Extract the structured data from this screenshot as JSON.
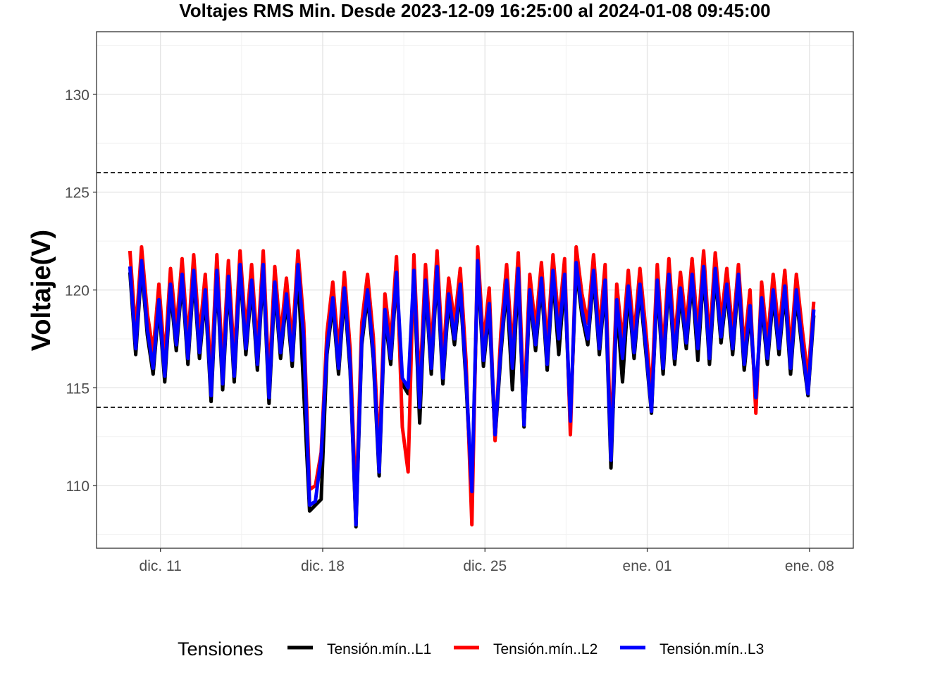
{
  "chart_data": {
    "type": "line",
    "title": "Voltajes RMS Min. Desde  2023-12-09 16:25:00  al  2024-01-08 09:45:00",
    "xlabel": "",
    "ylabel": "Voltaje(V)",
    "ylim": [
      106.8,
      133.2
    ],
    "xlim": [
      "2023-12-08T05:50:00",
      "2024-01-09T21:20:00"
    ],
    "grid": true,
    "y_ticks": [
      110,
      115,
      120,
      125,
      130
    ],
    "y_tick_labels": [
      "110",
      "115",
      "120",
      "125",
      "130"
    ],
    "x_ticks": [
      "2023-12-11",
      "2023-12-18",
      "2023-12-25",
      "2024-01-01",
      "2024-01-08"
    ],
    "x_tick_labels": [
      "dic. 11",
      "dic. 18",
      "dic. 25",
      "ene. 01",
      "ene. 08"
    ],
    "reference_lines": [
      126,
      114
    ],
    "legend": {
      "title": "Tensiones",
      "position": "bottom"
    },
    "x_start": "2023-12-09T16:25:00",
    "step_hours": 6,
    "series": [
      {
        "name": "Tensión.mín..L1",
        "color": "#000000",
        "values": [
          120.9,
          116.7,
          121.2,
          117.7,
          115.7,
          119.2,
          115.3,
          120.0,
          116.9,
          120.5,
          116.2,
          120.7,
          116.5,
          119.7,
          114.3,
          120.7,
          114.9,
          120.4,
          115.3,
          121.0,
          116.7,
          120.2,
          115.9,
          121.0,
          114.2,
          120.1,
          116.5,
          119.5,
          116.1,
          121.0,
          114.8,
          108.7,
          109.0,
          109.3,
          116.7,
          119.3,
          115.7,
          119.8,
          115.9,
          107.9,
          117.2,
          119.7,
          116.5,
          110.5,
          118.7,
          116.2,
          120.6,
          115.2,
          114.7,
          120.7,
          113.2,
          120.2,
          115.7,
          120.9,
          115.2,
          119.5,
          117.2,
          120.0,
          115.3,
          109.5,
          121.2,
          116.1,
          119.0,
          112.4,
          116.7,
          120.2,
          114.9,
          120.8,
          113.0,
          119.7,
          116.9,
          120.3,
          115.9,
          120.7,
          116.7,
          120.5,
          113.2,
          121.1,
          118.7,
          117.2,
          120.7,
          116.7,
          120.2,
          110.9,
          119.2,
          115.3,
          119.9,
          116.5,
          120.0,
          116.9,
          113.7,
          120.2,
          115.7,
          120.5,
          116.2,
          119.8,
          117.0,
          120.5,
          116.4,
          120.9,
          116.2,
          120.8,
          117.3,
          120.0,
          116.7,
          120.5,
          115.9,
          118.9,
          114.4,
          119.3,
          116.2,
          119.7,
          116.7,
          119.9,
          115.7,
          119.7,
          116.9,
          114.6,
          118.7
        ]
      },
      {
        "name": "Tensión.mín..L2",
        "color": "#ff0000",
        "values": [
          122.0,
          117.8,
          122.2,
          118.8,
          116.8,
          120.3,
          116.4,
          121.1,
          118.0,
          121.6,
          117.3,
          121.8,
          117.6,
          120.8,
          115.4,
          121.8,
          116.0,
          121.5,
          116.4,
          122.0,
          117.8,
          121.3,
          117.0,
          122.0,
          115.3,
          121.2,
          117.6,
          120.6,
          117.2,
          122.0,
          118.3,
          109.8,
          110.0,
          111.7,
          117.8,
          120.4,
          116.8,
          120.9,
          117.0,
          108.8,
          118.3,
          120.8,
          117.6,
          111.5,
          119.8,
          117.3,
          121.7,
          113.0,
          110.7,
          121.8,
          114.8,
          121.3,
          116.8,
          122.0,
          116.3,
          120.6,
          118.3,
          121.1,
          116.4,
          108.0,
          122.2,
          117.2,
          120.1,
          112.3,
          117.8,
          121.3,
          116.8,
          121.9,
          113.9,
          120.8,
          118.0,
          121.4,
          117.0,
          121.8,
          118.3,
          121.6,
          112.6,
          122.2,
          119.8,
          118.3,
          121.8,
          117.8,
          121.3,
          112.1,
          120.3,
          117.3,
          121.0,
          117.6,
          121.1,
          118.0,
          114.6,
          121.3,
          116.8,
          121.6,
          117.3,
          120.9,
          118.1,
          121.6,
          117.8,
          122.0,
          117.3,
          121.9,
          118.4,
          121.1,
          117.8,
          121.3,
          117.0,
          120.0,
          113.7,
          120.4,
          117.3,
          120.8,
          117.8,
          121.0,
          116.8,
          120.8,
          118.0,
          115.5,
          119.4
        ]
      },
      {
        "name": "Tensión.mín..L3",
        "color": "#0000ff",
        "values": [
          121.2,
          117.0,
          121.5,
          118.0,
          116.0,
          119.5,
          115.6,
          120.3,
          117.2,
          120.8,
          116.5,
          121.0,
          116.8,
          120.0,
          114.6,
          121.0,
          115.2,
          120.7,
          115.6,
          121.3,
          117.0,
          120.5,
          116.2,
          121.3,
          114.5,
          120.4,
          116.8,
          119.8,
          116.4,
          121.3,
          117.5,
          109.0,
          109.2,
          111.5,
          117.0,
          119.6,
          116.0,
          120.1,
          116.2,
          108.0,
          117.5,
          120.0,
          116.8,
          110.7,
          119.0,
          116.5,
          120.9,
          115.5,
          115.0,
          121.0,
          114.0,
          120.5,
          116.0,
          121.2,
          115.5,
          119.8,
          117.5,
          120.3,
          115.6,
          109.7,
          121.5,
          116.4,
          119.3,
          112.6,
          117.0,
          120.5,
          116.0,
          121.1,
          113.1,
          120.0,
          117.2,
          120.6,
          116.2,
          121.0,
          117.5,
          120.8,
          113.3,
          121.4,
          119.0,
          117.5,
          121.0,
          117.0,
          120.5,
          111.3,
          119.5,
          116.5,
          120.2,
          116.8,
          120.3,
          117.2,
          113.8,
          120.5,
          116.0,
          120.8,
          116.5,
          120.1,
          117.3,
          120.8,
          117.0,
          121.2,
          116.5,
          121.1,
          117.6,
          120.3,
          117.0,
          120.8,
          116.2,
          119.2,
          114.5,
          119.6,
          116.5,
          120.0,
          117.0,
          120.2,
          116.0,
          120.0,
          117.2,
          114.7,
          119.0
        ]
      }
    ]
  }
}
